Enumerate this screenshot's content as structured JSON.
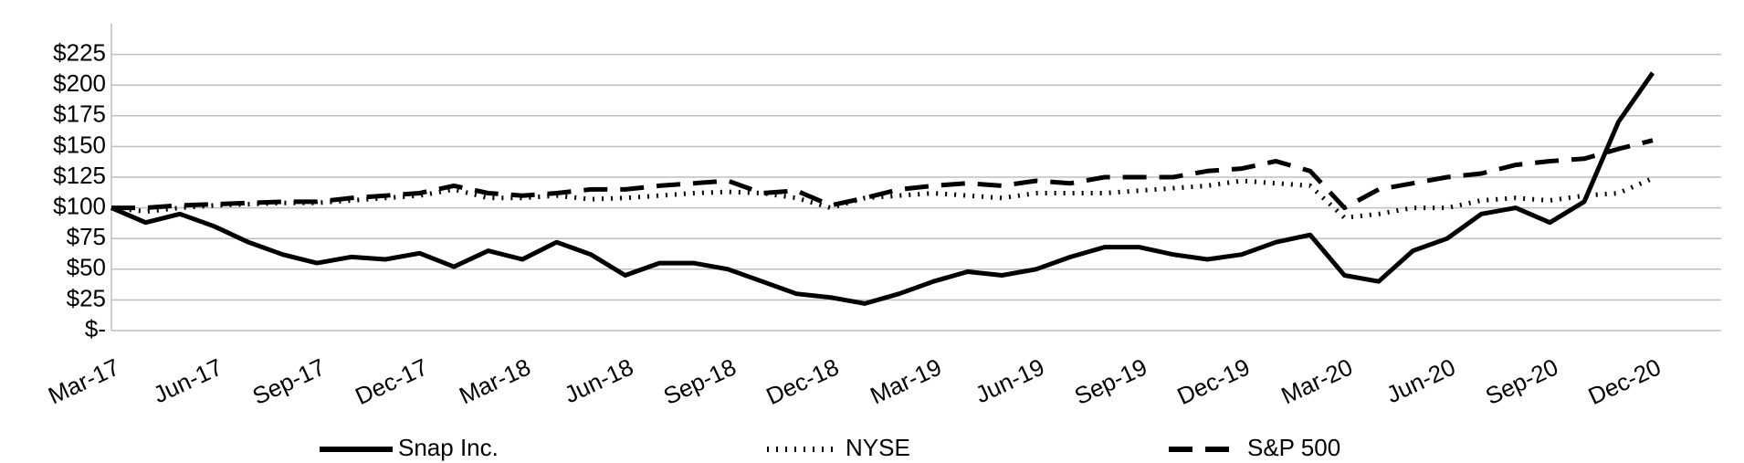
{
  "chart_data": {
    "type": "line",
    "x": [
      "Mar-17",
      "Apr-17",
      "May-17",
      "Jun-17",
      "Jul-17",
      "Aug-17",
      "Sep-17",
      "Oct-17",
      "Nov-17",
      "Dec-17",
      "Jan-18",
      "Feb-18",
      "Mar-18",
      "Apr-18",
      "May-18",
      "Jun-18",
      "Jul-18",
      "Aug-18",
      "Sep-18",
      "Oct-18",
      "Nov-18",
      "Dec-18",
      "Jan-19",
      "Feb-19",
      "Mar-19",
      "Apr-19",
      "May-19",
      "Jun-19",
      "Jul-19",
      "Aug-19",
      "Sep-19",
      "Oct-19",
      "Nov-19",
      "Dec-19",
      "Jan-20",
      "Feb-20",
      "Mar-20",
      "Apr-20",
      "May-20",
      "Jun-20",
      "Jul-20",
      "Aug-20",
      "Sep-20",
      "Oct-20",
      "Nov-20",
      "Dec-20"
    ],
    "xticks": [
      "Mar-17",
      "Jun-17",
      "Sep-17",
      "Dec-17",
      "Mar-18",
      "Jun-18",
      "Sep-18",
      "Dec-18",
      "Mar-19",
      "Jun-19",
      "Sep-19",
      "Dec-19",
      "Mar-20",
      "Jun-20",
      "Sep-20",
      "Dec-20"
    ],
    "series": [
      {
        "name": "Snap Inc.",
        "color": "#000000",
        "style": "solid",
        "values": [
          100,
          88,
          95,
          85,
          72,
          62,
          55,
          60,
          58,
          63,
          52,
          65,
          58,
          72,
          62,
          45,
          55,
          55,
          50,
          40,
          30,
          27,
          22,
          30,
          40,
          48,
          45,
          50,
          60,
          68,
          68,
          62,
          58,
          62,
          72,
          78,
          45,
          40,
          65,
          75,
          95,
          100,
          88,
          105,
          170,
          210
        ]
      },
      {
        "name": "NYSE",
        "color": "#000000",
        "style": "dotted",
        "values": [
          100,
          97,
          100,
          102,
          103,
          104,
          104,
          106,
          108,
          110,
          115,
          108,
          108,
          110,
          107,
          108,
          110,
          112,
          113,
          112,
          108,
          100,
          108,
          110,
          112,
          110,
          108,
          112,
          112,
          112,
          114,
          116,
          118,
          122,
          120,
          118,
          92,
          95,
          100,
          100,
          106,
          108,
          106,
          110,
          112,
          124
        ]
      },
      {
        "name": "S&P 500",
        "color": "#000000",
        "style": "dashed",
        "values": [
          100,
          100,
          102,
          103,
          104,
          105,
          105,
          108,
          110,
          112,
          118,
          112,
          110,
          112,
          115,
          115,
          118,
          120,
          122,
          112,
          114,
          102,
          108,
          115,
          118,
          120,
          118,
          122,
          120,
          125,
          125,
          125,
          130,
          132,
          138,
          130,
          100,
          115,
          120,
          125,
          128,
          135,
          138,
          140,
          148,
          155
        ]
      }
    ],
    "ylim": [
      0,
      250
    ],
    "yticks": [
      {
        "value": 0,
        "label": "$-"
      },
      {
        "value": 25,
        "label": "$25"
      },
      {
        "value": 50,
        "label": "$50"
      },
      {
        "value": 75,
        "label": "$75"
      },
      {
        "value": 100,
        "label": "$100"
      },
      {
        "value": 125,
        "label": "$125"
      },
      {
        "value": 150,
        "label": "$150"
      },
      {
        "value": 175,
        "label": "$175"
      },
      {
        "value": 200,
        "label": "$200"
      },
      {
        "value": 225,
        "label": "$225"
      }
    ],
    "grid": true,
    "legend": "bottom"
  }
}
